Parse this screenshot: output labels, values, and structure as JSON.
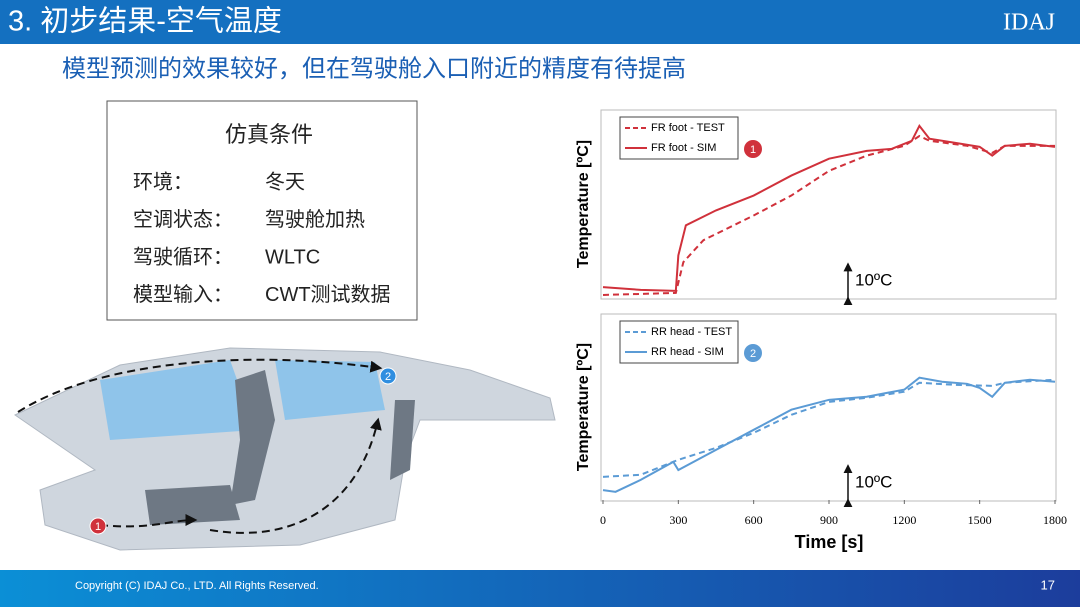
{
  "header": {
    "title": "3. 初步结果-空气温度",
    "logo": "IDAJ"
  },
  "subtitle": "模型预测的效果较好，但在驾驶舱入口附近的精度有待提高",
  "conditions": {
    "title": "仿真条件",
    "rows": [
      [
        "环境：",
        "冬天"
      ],
      [
        "空调状态：",
        "驾驶舱加热"
      ],
      [
        "驾驶循环：",
        "WLTC"
      ],
      [
        "模型输入：",
        "CWT测试数据"
      ]
    ]
  },
  "car_markers": [
    "1",
    "2"
  ],
  "chart_data": [
    {
      "type": "line",
      "ylabel": "Temperature [ºC]",
      "marker": "1",
      "xlim": [
        0,
        1800
      ],
      "ylim": [
        0,
        55
      ],
      "scale_bar": {
        "value": 10,
        "label": "10ºC"
      },
      "series": [
        {
          "name": "FR foot - TEST",
          "color": "#d0313b",
          "dashed": true,
          "x": [
            0,
            290,
            320,
            400,
            600,
            750,
            900,
            1050,
            1200,
            1260,
            1300,
            1450,
            1550,
            1600,
            1800
          ],
          "values": [
            0.9,
            1.5,
            10.6,
            17.1,
            24.4,
            30.3,
            37.6,
            42.1,
            45.0,
            47.9,
            46.5,
            45.0,
            42.9,
            45.0,
            45.0
          ]
        },
        {
          "name": "FR foot - SIM",
          "color": "#d0313b",
          "dashed": false,
          "x": [
            0,
            150,
            290,
            300,
            330,
            450,
            600,
            750,
            900,
            1050,
            1150,
            1230,
            1260,
            1300,
            1400,
            1500,
            1550,
            1600,
            1700,
            1800
          ],
          "values": [
            3.2,
            2.4,
            2.1,
            12.6,
            21.5,
            25.9,
            30.3,
            36.2,
            41.2,
            43.5,
            44.1,
            46.5,
            50.9,
            47.1,
            45.9,
            44.7,
            42.1,
            45.0,
            45.6,
            44.7
          ]
        }
      ]
    },
    {
      "type": "line",
      "ylabel": "Temperature [ºC]",
      "xlabel": "Time [s]",
      "marker": "2",
      "xlim": [
        0,
        1800
      ],
      "ylim": [
        0,
        54
      ],
      "xticks": [
        0,
        300,
        600,
        900,
        1200,
        1500,
        1800
      ],
      "scale_bar": {
        "value": 10,
        "label": "10ºC"
      },
      "series": [
        {
          "name": "RR head - TEST",
          "color": "#5b9bd5",
          "dashed": true,
          "x": [
            0,
            150,
            300,
            450,
            600,
            750,
            900,
            1050,
            1200,
            1260,
            1400,
            1550,
            1600,
            1800
          ],
          "values": [
            6.8,
            7.4,
            11.8,
            15.3,
            19.7,
            25.0,
            28.8,
            30.0,
            31.8,
            34.4,
            33.8,
            33.5,
            34.4,
            35.3
          ]
        },
        {
          "name": "RR head - SIM",
          "color": "#5b9bd5",
          "dashed": false,
          "x": [
            0,
            50,
            150,
            280,
            300,
            450,
            600,
            750,
            900,
            1050,
            1200,
            1260,
            1350,
            1450,
            1500,
            1550,
            1600,
            1700,
            1800
          ],
          "values": [
            2.9,
            2.4,
            5.9,
            11.2,
            8.8,
            14.7,
            20.6,
            26.5,
            29.4,
            30.3,
            32.4,
            35.9,
            34.7,
            34.1,
            32.9,
            30.3,
            34.4,
            35.3,
            34.7
          ]
        }
      ]
    }
  ],
  "footer": {
    "copyright": "Copyright (C)  IDAJ Co., LTD. All Rights Reserved.",
    "page": "17"
  }
}
